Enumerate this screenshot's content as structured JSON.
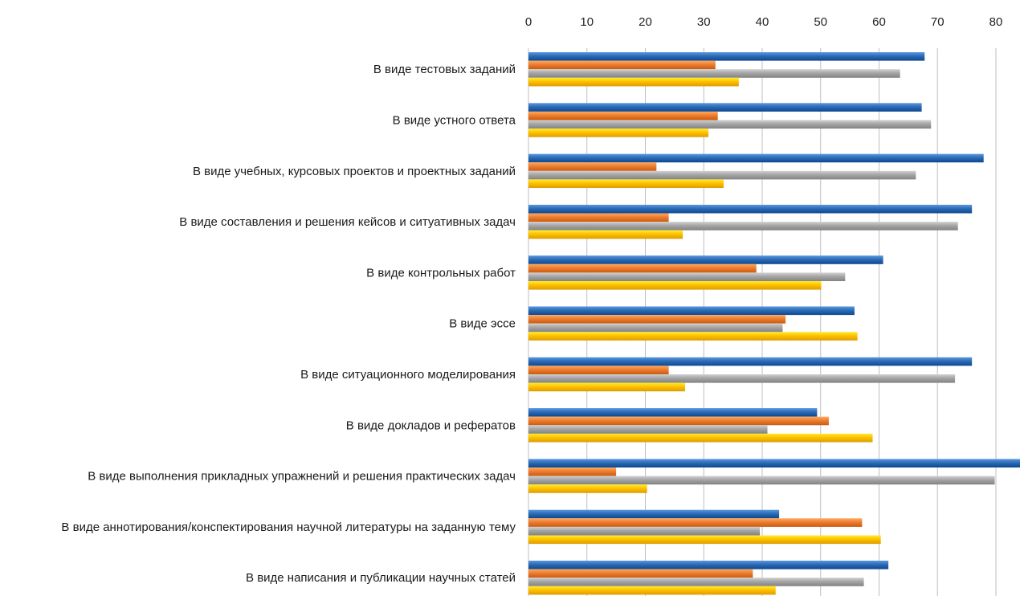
{
  "chart_data": {
    "type": "bar",
    "orientation": "horizontal",
    "xlim": [
      0,
      85
    ],
    "x_ticks": [
      "0",
      "10",
      "20",
      "30",
      "40",
      "50",
      "60",
      "70",
      "80"
    ],
    "x_axis_position": "top",
    "grid": true,
    "legend": "none",
    "categories": [
      "В виде тестовых заданий",
      "В виде устного ответа",
      "В виде учебных, курсовых проектов и проектных заданий",
      "В виде составления и решения кейсов и ситуативных задач",
      "В виде контрольных работ",
      "В виде эссе",
      "В виде ситуационного моделирования",
      "В виде докладов и рефератов",
      "В виде выполнения прикладных упражнений и решения практических задач",
      "В виде аннотирования/конспектирования научной литературы на заданную тему",
      "В виде написания и публикации научных статей"
    ],
    "series": [
      {
        "color": "#2e6bb5",
        "values": [
          67.8,
          67.3,
          77.9,
          75.9,
          60.7,
          55.8,
          75.9,
          49.4,
          84.5,
          42.9,
          61.6
        ]
      },
      {
        "color": "#ed7d31",
        "values": [
          32.0,
          32.4,
          21.9,
          24.0,
          39.0,
          44.0,
          24.0,
          51.4,
          15.0,
          57.1,
          38.4
        ]
      },
      {
        "color": "#a5a5a5",
        "values": [
          63.6,
          68.9,
          66.3,
          73.5,
          54.2,
          43.5,
          73.0,
          40.9,
          79.8,
          39.6,
          57.4
        ]
      },
      {
        "color": "#ffc000",
        "values": [
          36.0,
          30.8,
          33.4,
          26.4,
          50.1,
          56.3,
          26.8,
          58.9,
          20.3,
          60.3,
          42.3
        ]
      }
    ]
  }
}
